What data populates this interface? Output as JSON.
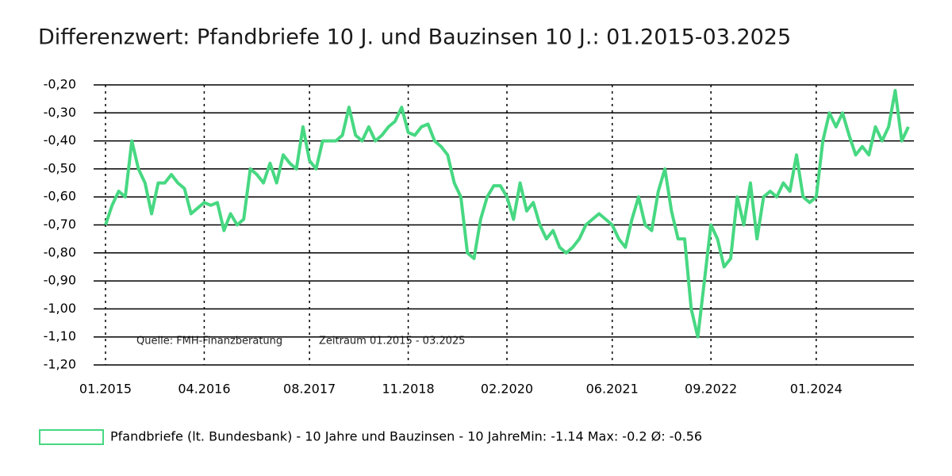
{
  "chart_data": {
    "type": "line",
    "title": "Differenzwert: Pfandbriefe 10 J. und Bauzinsen 10 J.: 01.2015-03.2025",
    "annotations": [
      "Quelle: FMH-Finanzberatung",
      "Zeitraum 01.2015 - 03.2025"
    ],
    "categories": [
      "01.2015",
      null,
      null,
      null,
      null,
      null,
      null,
      null,
      null,
      null,
      null,
      null,
      null,
      null,
      null,
      "04.2016",
      null,
      null,
      null,
      null,
      null,
      null,
      null,
      null,
      null,
      null,
      null,
      null,
      null,
      null,
      null,
      "08.2017",
      null,
      null,
      null,
      null,
      null,
      null,
      null,
      null,
      null,
      null,
      null,
      null,
      null,
      null,
      "11.2018",
      null,
      null,
      null,
      null,
      null,
      null,
      null,
      null,
      null,
      null,
      null,
      null,
      null,
      null,
      "02.2020",
      null,
      null,
      null,
      null,
      null,
      null,
      null,
      null,
      null,
      null,
      null,
      null,
      null,
      null,
      null,
      "06.2021",
      null,
      null,
      null,
      null,
      null,
      null,
      null,
      null,
      null,
      null,
      null,
      null,
      null,
      null,
      "09.2022",
      null,
      null,
      null,
      null,
      null,
      null,
      null,
      null,
      null,
      null,
      null,
      null,
      null,
      null,
      null,
      "01.2024",
      null,
      null,
      null,
      null,
      null,
      null,
      null,
      null,
      null,
      null,
      null,
      null,
      null,
      null
    ],
    "series": [
      {
        "name": "Pfandbriefe (lt. Bundesbank) - 10 Jahre und Bauzinsen - 10 JahreMin: -1.14 Max: -0.2 Ø: -0.56",
        "color": "#47d882",
        "values": [
          -0.7,
          -0.63,
          -0.58,
          -0.6,
          -0.4,
          -0.5,
          -0.55,
          -0.66,
          -0.55,
          -0.55,
          -0.52,
          -0.55,
          -0.57,
          -0.66,
          -0.64,
          -0.62,
          -0.63,
          -0.62,
          -0.72,
          -0.66,
          -0.7,
          -0.68,
          -0.5,
          -0.52,
          -0.55,
          -0.48,
          -0.55,
          -0.45,
          -0.48,
          -0.5,
          -0.35,
          -0.47,
          -0.5,
          -0.4,
          -0.4,
          -0.4,
          -0.38,
          -0.28,
          -0.38,
          -0.4,
          -0.35,
          -0.4,
          -0.38,
          -0.35,
          -0.33,
          -0.28,
          -0.37,
          -0.38,
          -0.35,
          -0.34,
          -0.4,
          -0.42,
          -0.45,
          -0.55,
          -0.6,
          -0.8,
          -0.82,
          -0.68,
          -0.6,
          -0.56,
          -0.56,
          -0.6,
          -0.68,
          -0.55,
          -0.65,
          -0.62,
          -0.7,
          -0.75,
          -0.72,
          -0.78,
          -0.8,
          -0.78,
          -0.75,
          -0.7,
          -0.68,
          -0.66,
          -0.68,
          -0.7,
          -0.75,
          -0.78,
          -0.68,
          -0.6,
          -0.7,
          -0.72,
          -0.58,
          -0.5,
          -0.65,
          -0.75,
          -0.75,
          -1.0,
          -1.1,
          -0.9,
          -0.7,
          -0.75,
          -0.85,
          -0.82,
          -0.6,
          -0.7,
          -0.55,
          -0.75,
          -0.6,
          -0.58,
          -0.6,
          -0.55,
          -0.58,
          -0.45,
          -0.6,
          -0.62,
          -0.6,
          -0.4,
          -0.3,
          -0.35,
          -0.3,
          -0.38,
          -0.45,
          -0.42,
          -0.45,
          -0.35,
          -0.4,
          -0.35,
          -0.22,
          -0.4,
          -0.35
        ]
      }
    ],
    "ylim": [
      -1.2,
      -0.2
    ],
    "yticks": [
      {
        "value": -1.2,
        "label": "-1,20"
      },
      {
        "value": -1.1,
        "label": "-1,10"
      },
      {
        "value": -1.0,
        "label": "-1,00"
      },
      {
        "value": -0.9,
        "label": "-0,90"
      },
      {
        "value": -0.8,
        "label": "-0,80"
      },
      {
        "value": -0.7,
        "label": "-0,70"
      },
      {
        "value": -0.6,
        "label": "-0,60"
      },
      {
        "value": -0.5,
        "label": "-0,50"
      },
      {
        "value": -0.4,
        "label": "-0,40"
      },
      {
        "value": -0.3,
        "label": "-0,30"
      },
      {
        "value": -0.2,
        "label": "-0,20"
      }
    ],
    "grid": true
  }
}
